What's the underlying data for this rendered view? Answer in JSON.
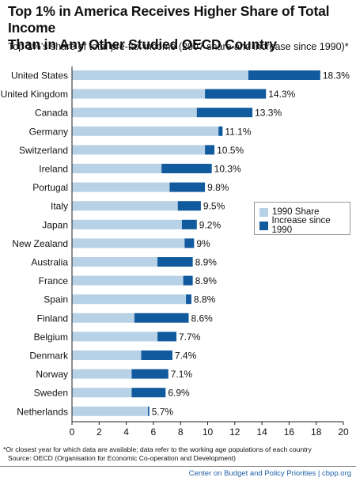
{
  "title_lines": [
    "Top 1% in America Receives Higher Share of Total Income",
    "Than in Any Other Studied OECD Country"
  ],
  "subtitle": "Top 1%’s share of total pre-tax income (2007 share and increase since 1990)*",
  "footnote_lines": [
    "*Or closest year for which data are available; data refer to the working age populations of each country",
    "Source: OECD (Organisation for Economic Co-operation and Development)"
  ],
  "footer": {
    "org": "Center on Budget and Policy Priorities",
    "sep": " | ",
    "site": "cbpp.org"
  },
  "colors": {
    "share_1990": "#b7d1e7",
    "increase": "#115a9e"
  },
  "chart_data": {
    "type": "bar",
    "orientation": "horizontal",
    "stacked": true,
    "categories": [
      "United States",
      "United Kingdom",
      "Canada",
      "Germany",
      "Switzerland",
      "Ireland",
      "Portugal",
      "Italy",
      "Japan",
      "New Zealand",
      "Australia",
      "France",
      "Spain",
      "Finland",
      "Belgium",
      "Denmark",
      "Norway",
      "Sweden",
      "Netherlands"
    ],
    "series": [
      {
        "name": "1990 Share",
        "values": [
          13.0,
          9.8,
          9.2,
          10.8,
          9.8,
          6.6,
          7.2,
          7.8,
          8.1,
          8.3,
          6.3,
          8.2,
          8.4,
          4.6,
          6.3,
          5.1,
          4.4,
          4.4,
          5.6
        ]
      },
      {
        "name": "Increase since 1990",
        "values": [
          5.3,
          4.5,
          4.1,
          0.3,
          0.7,
          3.7,
          2.6,
          1.7,
          1.1,
          0.7,
          2.6,
          0.7,
          0.4,
          4.0,
          1.4,
          2.3,
          2.7,
          2.5,
          0.1
        ]
      }
    ],
    "value_labels": [
      "18.3%",
      "14.3%",
      "13.3%",
      "11.1%",
      "10.5%",
      "10.3%",
      "9.8%",
      "9.5%",
      "9.2%",
      "9%",
      "8.9%",
      "8.9%",
      "8.8%",
      "8.6%",
      "7.7%",
      "7.4%",
      "7.1%",
      "6.9%",
      "5.7%"
    ],
    "xlim": [
      0,
      20
    ],
    "xticks": [
      "0",
      "2",
      "4",
      "6",
      "8",
      "10",
      "12",
      "14",
      "16",
      "18",
      "20"
    ],
    "grid": false,
    "legend_position": "right"
  }
}
